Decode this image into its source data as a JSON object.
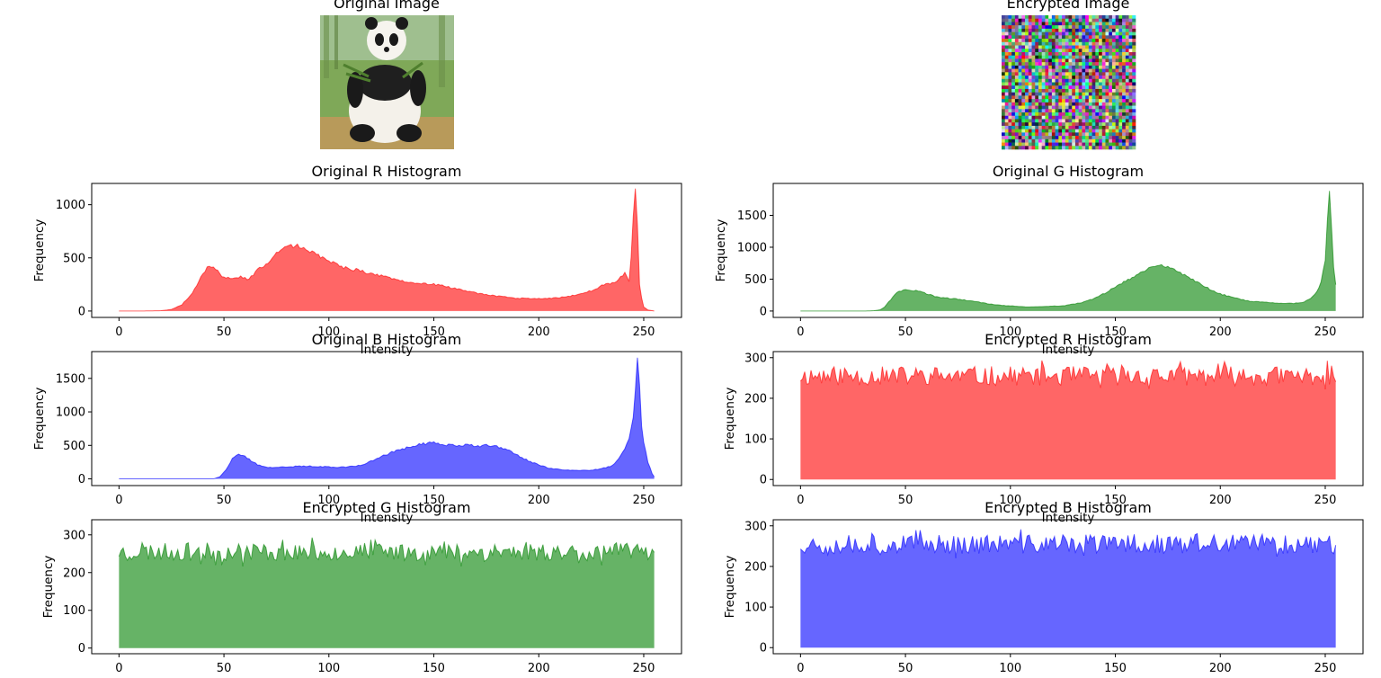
{
  "images": [
    {
      "title": "Original Image"
    },
    {
      "title": "Encrypted Image"
    }
  ],
  "chart_data": [
    {
      "type": "area",
      "title": "Original R Histogram",
      "xlabel": "Intensity",
      "ylabel": "Frequency",
      "color": "#ff0000",
      "xlim": [
        -13,
        268
      ],
      "ylim": [
        -60,
        1200
      ],
      "xticks": [
        0,
        50,
        100,
        150,
        200,
        250
      ],
      "yticks": [
        0,
        500,
        1000
      ],
      "anchors": [
        [
          0,
          0
        ],
        [
          10,
          0
        ],
        [
          20,
          3
        ],
        [
          25,
          15
        ],
        [
          30,
          60
        ],
        [
          35,
          170
        ],
        [
          40,
          360
        ],
        [
          43,
          430
        ],
        [
          46,
          390
        ],
        [
          50,
          310
        ],
        [
          55,
          300
        ],
        [
          58,
          320
        ],
        [
          62,
          300
        ],
        [
          65,
          370
        ],
        [
          70,
          440
        ],
        [
          75,
          560
        ],
        [
          80,
          620
        ],
        [
          85,
          610
        ],
        [
          90,
          580
        ],
        [
          95,
          520
        ],
        [
          100,
          470
        ],
        [
          105,
          420
        ],
        [
          110,
          400
        ],
        [
          115,
          380
        ],
        [
          120,
          350
        ],
        [
          125,
          330
        ],
        [
          130,
          300
        ],
        [
          135,
          280
        ],
        [
          140,
          260
        ],
        [
          145,
          255
        ],
        [
          150,
          250
        ],
        [
          155,
          235
        ],
        [
          160,
          210
        ],
        [
          165,
          190
        ],
        [
          170,
          170
        ],
        [
          175,
          155
        ],
        [
          180,
          140
        ],
        [
          185,
          130
        ],
        [
          190,
          120
        ],
        [
          195,
          120
        ],
        [
          200,
          115
        ],
        [
          205,
          120
        ],
        [
          210,
          125
        ],
        [
          215,
          140
        ],
        [
          220,
          160
        ],
        [
          225,
          190
        ],
        [
          230,
          240
        ],
        [
          235,
          260
        ],
        [
          238,
          300
        ],
        [
          241,
          360
        ],
        [
          243,
          280
        ],
        [
          244,
          500
        ],
        [
          245,
          900
        ],
        [
          246,
          1140
        ],
        [
          247,
          800
        ],
        [
          248,
          250
        ],
        [
          249,
          120
        ],
        [
          250,
          40
        ],
        [
          252,
          10
        ],
        [
          255,
          0
        ]
      ]
    },
    {
      "type": "area",
      "title": "Original G Histogram",
      "xlabel": "Intensity",
      "ylabel": "Frequency",
      "color": "#008000",
      "xlim": [
        -13,
        268
      ],
      "ylim": [
        -100,
        2000
      ],
      "xticks": [
        0,
        50,
        100,
        150,
        200,
        250
      ],
      "yticks": [
        0,
        500,
        1000,
        1500
      ],
      "anchors": [
        [
          0,
          0
        ],
        [
          30,
          0
        ],
        [
          35,
          5
        ],
        [
          38,
          20
        ],
        [
          40,
          60
        ],
        [
          43,
          180
        ],
        [
          46,
          290
        ],
        [
          50,
          340
        ],
        [
          55,
          320
        ],
        [
          60,
          270
        ],
        [
          65,
          220
        ],
        [
          70,
          200
        ],
        [
          75,
          190
        ],
        [
          80,
          160
        ],
        [
          85,
          140
        ],
        [
          90,
          110
        ],
        [
          95,
          90
        ],
        [
          100,
          80
        ],
        [
          105,
          70
        ],
        [
          110,
          65
        ],
        [
          115,
          70
        ],
        [
          120,
          75
        ],
        [
          125,
          80
        ],
        [
          130,
          110
        ],
        [
          135,
          140
        ],
        [
          140,
          200
        ],
        [
          145,
          280
        ],
        [
          150,
          380
        ],
        [
          155,
          470
        ],
        [
          160,
          560
        ],
        [
          165,
          650
        ],
        [
          170,
          730
        ],
        [
          175,
          680
        ],
        [
          180,
          620
        ],
        [
          185,
          530
        ],
        [
          190,
          430
        ],
        [
          195,
          340
        ],
        [
          200,
          270
        ],
        [
          205,
          220
        ],
        [
          210,
          180
        ],
        [
          215,
          150
        ],
        [
          220,
          140
        ],
        [
          225,
          130
        ],
        [
          230,
          120
        ],
        [
          235,
          120
        ],
        [
          240,
          140
        ],
        [
          243,
          200
        ],
        [
          246,
          300
        ],
        [
          248,
          450
        ],
        [
          250,
          800
        ],
        [
          251,
          1400
        ],
        [
          252,
          1900
        ],
        [
          253,
          1300
        ],
        [
          254,
          700
        ],
        [
          255,
          400
        ]
      ]
    },
    {
      "type": "area",
      "title": "Original B Histogram",
      "xlabel": "Intensity",
      "ylabel": "Frequency",
      "color": "#0000ff",
      "xlim": [
        -13,
        268
      ],
      "ylim": [
        -100,
        1900
      ],
      "xticks": [
        0,
        50,
        100,
        150,
        200,
        250
      ],
      "yticks": [
        0,
        500,
        1000,
        1500
      ],
      "anchors": [
        [
          0,
          0
        ],
        [
          45,
          0
        ],
        [
          48,
          30
        ],
        [
          51,
          140
        ],
        [
          54,
          300
        ],
        [
          57,
          370
        ],
        [
          60,
          330
        ],
        [
          63,
          270
        ],
        [
          66,
          210
        ],
        [
          70,
          170
        ],
        [
          75,
          170
        ],
        [
          80,
          180
        ],
        [
          90,
          190
        ],
        [
          100,
          180
        ],
        [
          105,
          170
        ],
        [
          110,
          185
        ],
        [
          115,
          200
        ],
        [
          120,
          260
        ],
        [
          125,
          330
        ],
        [
          130,
          400
        ],
        [
          135,
          450
        ],
        [
          140,
          490
        ],
        [
          145,
          520
        ],
        [
          150,
          540
        ],
        [
          155,
          510
        ],
        [
          160,
          500
        ],
        [
          165,
          505
        ],
        [
          170,
          490
        ],
        [
          175,
          500
        ],
        [
          180,
          480
        ],
        [
          185,
          430
        ],
        [
          190,
          350
        ],
        [
          195,
          270
        ],
        [
          200,
          210
        ],
        [
          205,
          160
        ],
        [
          210,
          140
        ],
        [
          215,
          130
        ],
        [
          220,
          125
        ],
        [
          225,
          130
        ],
        [
          230,
          150
        ],
        [
          235,
          200
        ],
        [
          238,
          300
        ],
        [
          241,
          450
        ],
        [
          243,
          600
        ],
        [
          245,
          900
        ],
        [
          246,
          1300
        ],
        [
          247,
          1800
        ],
        [
          248,
          1400
        ],
        [
          249,
          800
        ],
        [
          250,
          550
        ],
        [
          252,
          250
        ],
        [
          254,
          80
        ],
        [
          255,
          30
        ]
      ]
    },
    {
      "type": "area",
      "title": "Encrypted R Histogram",
      "xlabel": "Intensity",
      "ylabel": "Frequency",
      "color": "#ff0000",
      "xlim": [
        -13,
        268
      ],
      "ylim": [
        -15,
        315
      ],
      "xticks": [
        0,
        50,
        100,
        150,
        200,
        250
      ],
      "yticks": [
        0,
        100,
        200,
        300
      ],
      "baseline": 255,
      "noise": 24,
      "seed": 11
    },
    {
      "type": "area",
      "title": "Encrypted G Histogram",
      "xlabel": "Intensity",
      "ylabel": "Frequency",
      "color": "#008000",
      "xlim": [
        -13,
        268
      ],
      "ylim": [
        -15,
        340
      ],
      "xticks": [
        0,
        50,
        100,
        150,
        200,
        250
      ],
      "yticks": [
        0,
        100,
        200,
        300
      ],
      "baseline": 255,
      "noise": 24,
      "seed": 23
    },
    {
      "type": "area",
      "title": "Encrypted B Histogram",
      "xlabel": "Intensity",
      "ylabel": "Frequency",
      "color": "#0000ff",
      "xlim": [
        -13,
        268
      ],
      "ylim": [
        -15,
        315
      ],
      "xticks": [
        0,
        50,
        100,
        150,
        200,
        250
      ],
      "yticks": [
        0,
        100,
        200,
        300
      ],
      "baseline": 255,
      "noise": 24,
      "seed": 37
    }
  ]
}
